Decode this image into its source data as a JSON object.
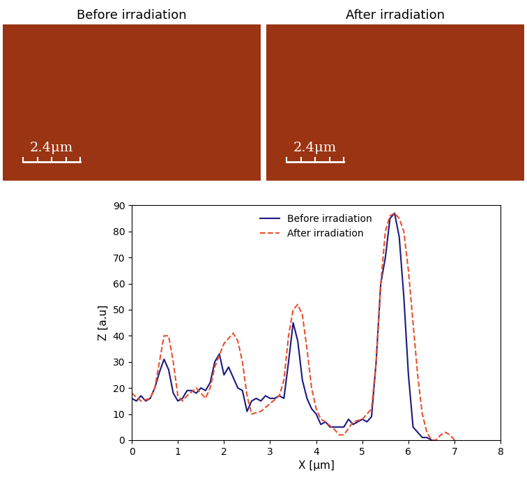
{
  "images": [
    {
      "title": "Before irradiation",
      "scale_bar": "2.4μm"
    },
    {
      "title": "After irradiation",
      "scale_bar": "2.4μm"
    }
  ],
  "chart_data": {
    "type": "line",
    "x_label": "X [μm]",
    "y_label": "Z [a.u]",
    "xlim": [
      0,
      8
    ],
    "xticks": [
      0,
      1,
      2,
      3,
      4,
      5,
      6,
      7,
      8
    ],
    "ylim": [
      0,
      90
    ],
    "yticks": [
      0,
      10,
      20,
      30,
      40,
      50,
      60,
      70,
      80,
      90
    ],
    "grid": false,
    "legend": "upper center",
    "series": [
      {
        "name": "Before irradiation",
        "color": "#1a1a80",
        "line_style": "solid",
        "x": [
          0,
          0.1,
          0.2,
          0.3,
          0.4,
          0.5,
          0.6,
          0.7,
          0.8,
          0.9,
          1.0,
          1.1,
          1.2,
          1.3,
          1.4,
          1.5,
          1.6,
          1.7,
          1.8,
          1.9,
          2.0,
          2.1,
          2.2,
          2.3,
          2.4,
          2.5,
          2.6,
          2.7,
          2.8,
          2.9,
          3.0,
          3.1,
          3.2,
          3.3,
          3.4,
          3.5,
          3.6,
          3.7,
          3.8,
          3.9,
          4.0,
          4.1,
          4.2,
          4.3,
          4.4,
          4.5,
          4.6,
          4.7,
          4.8,
          4.9,
          5.0,
          5.1,
          5.2,
          5.3,
          5.4,
          5.5,
          5.6,
          5.7,
          5.8,
          5.9,
          6.0,
          6.1,
          6.2,
          6.3,
          6.4,
          6.5
        ],
        "values": [
          16,
          15,
          17,
          15,
          16,
          20,
          26,
          31,
          27,
          18,
          15,
          16,
          19,
          19,
          18,
          20,
          19,
          22,
          30,
          33,
          25,
          28,
          24,
          20,
          19,
          11,
          15,
          16,
          15,
          17,
          16,
          16,
          17,
          16,
          30,
          45,
          38,
          23,
          16,
          12,
          10,
          6,
          7,
          5,
          5,
          5,
          5,
          8,
          6,
          7,
          8,
          7,
          9,
          30,
          60,
          70,
          85,
          87,
          78,
          55,
          25,
          5,
          3,
          1,
          1,
          0
        ]
      },
      {
        "name": "After irradiation",
        "color": "#e8502e",
        "line_style": "dashed",
        "x": [
          0,
          0.2,
          0.4,
          0.5,
          0.6,
          0.7,
          0.8,
          0.9,
          1.0,
          1.1,
          1.2,
          1.4,
          1.6,
          1.7,
          1.8,
          2.0,
          2.2,
          2.3,
          2.4,
          2.5,
          2.6,
          2.8,
          3.0,
          3.2,
          3.3,
          3.4,
          3.5,
          3.6,
          3.7,
          3.8,
          3.9,
          4.0,
          4.1,
          4.2,
          4.4,
          4.5,
          4.6,
          4.8,
          5.0,
          5.2,
          5.3,
          5.4,
          5.5,
          5.6,
          5.7,
          5.8,
          5.9,
          6.0,
          6.1,
          6.2,
          6.3,
          6.4,
          6.5,
          6.6,
          6.7,
          6.8,
          6.9,
          7.0
        ],
        "values": [
          18,
          15,
          16,
          20,
          30,
          40,
          40,
          30,
          17,
          15,
          17,
          20,
          16,
          20,
          28,
          37,
          41,
          38,
          30,
          17,
          10,
          11,
          14,
          17,
          23,
          40,
          50,
          52,
          48,
          35,
          20,
          12,
          8,
          7,
          4,
          2,
          2,
          7,
          8,
          12,
          30,
          60,
          80,
          86,
          87,
          85,
          80,
          65,
          45,
          25,
          10,
          3,
          0,
          0,
          2,
          3,
          2,
          0
        ]
      }
    ]
  }
}
